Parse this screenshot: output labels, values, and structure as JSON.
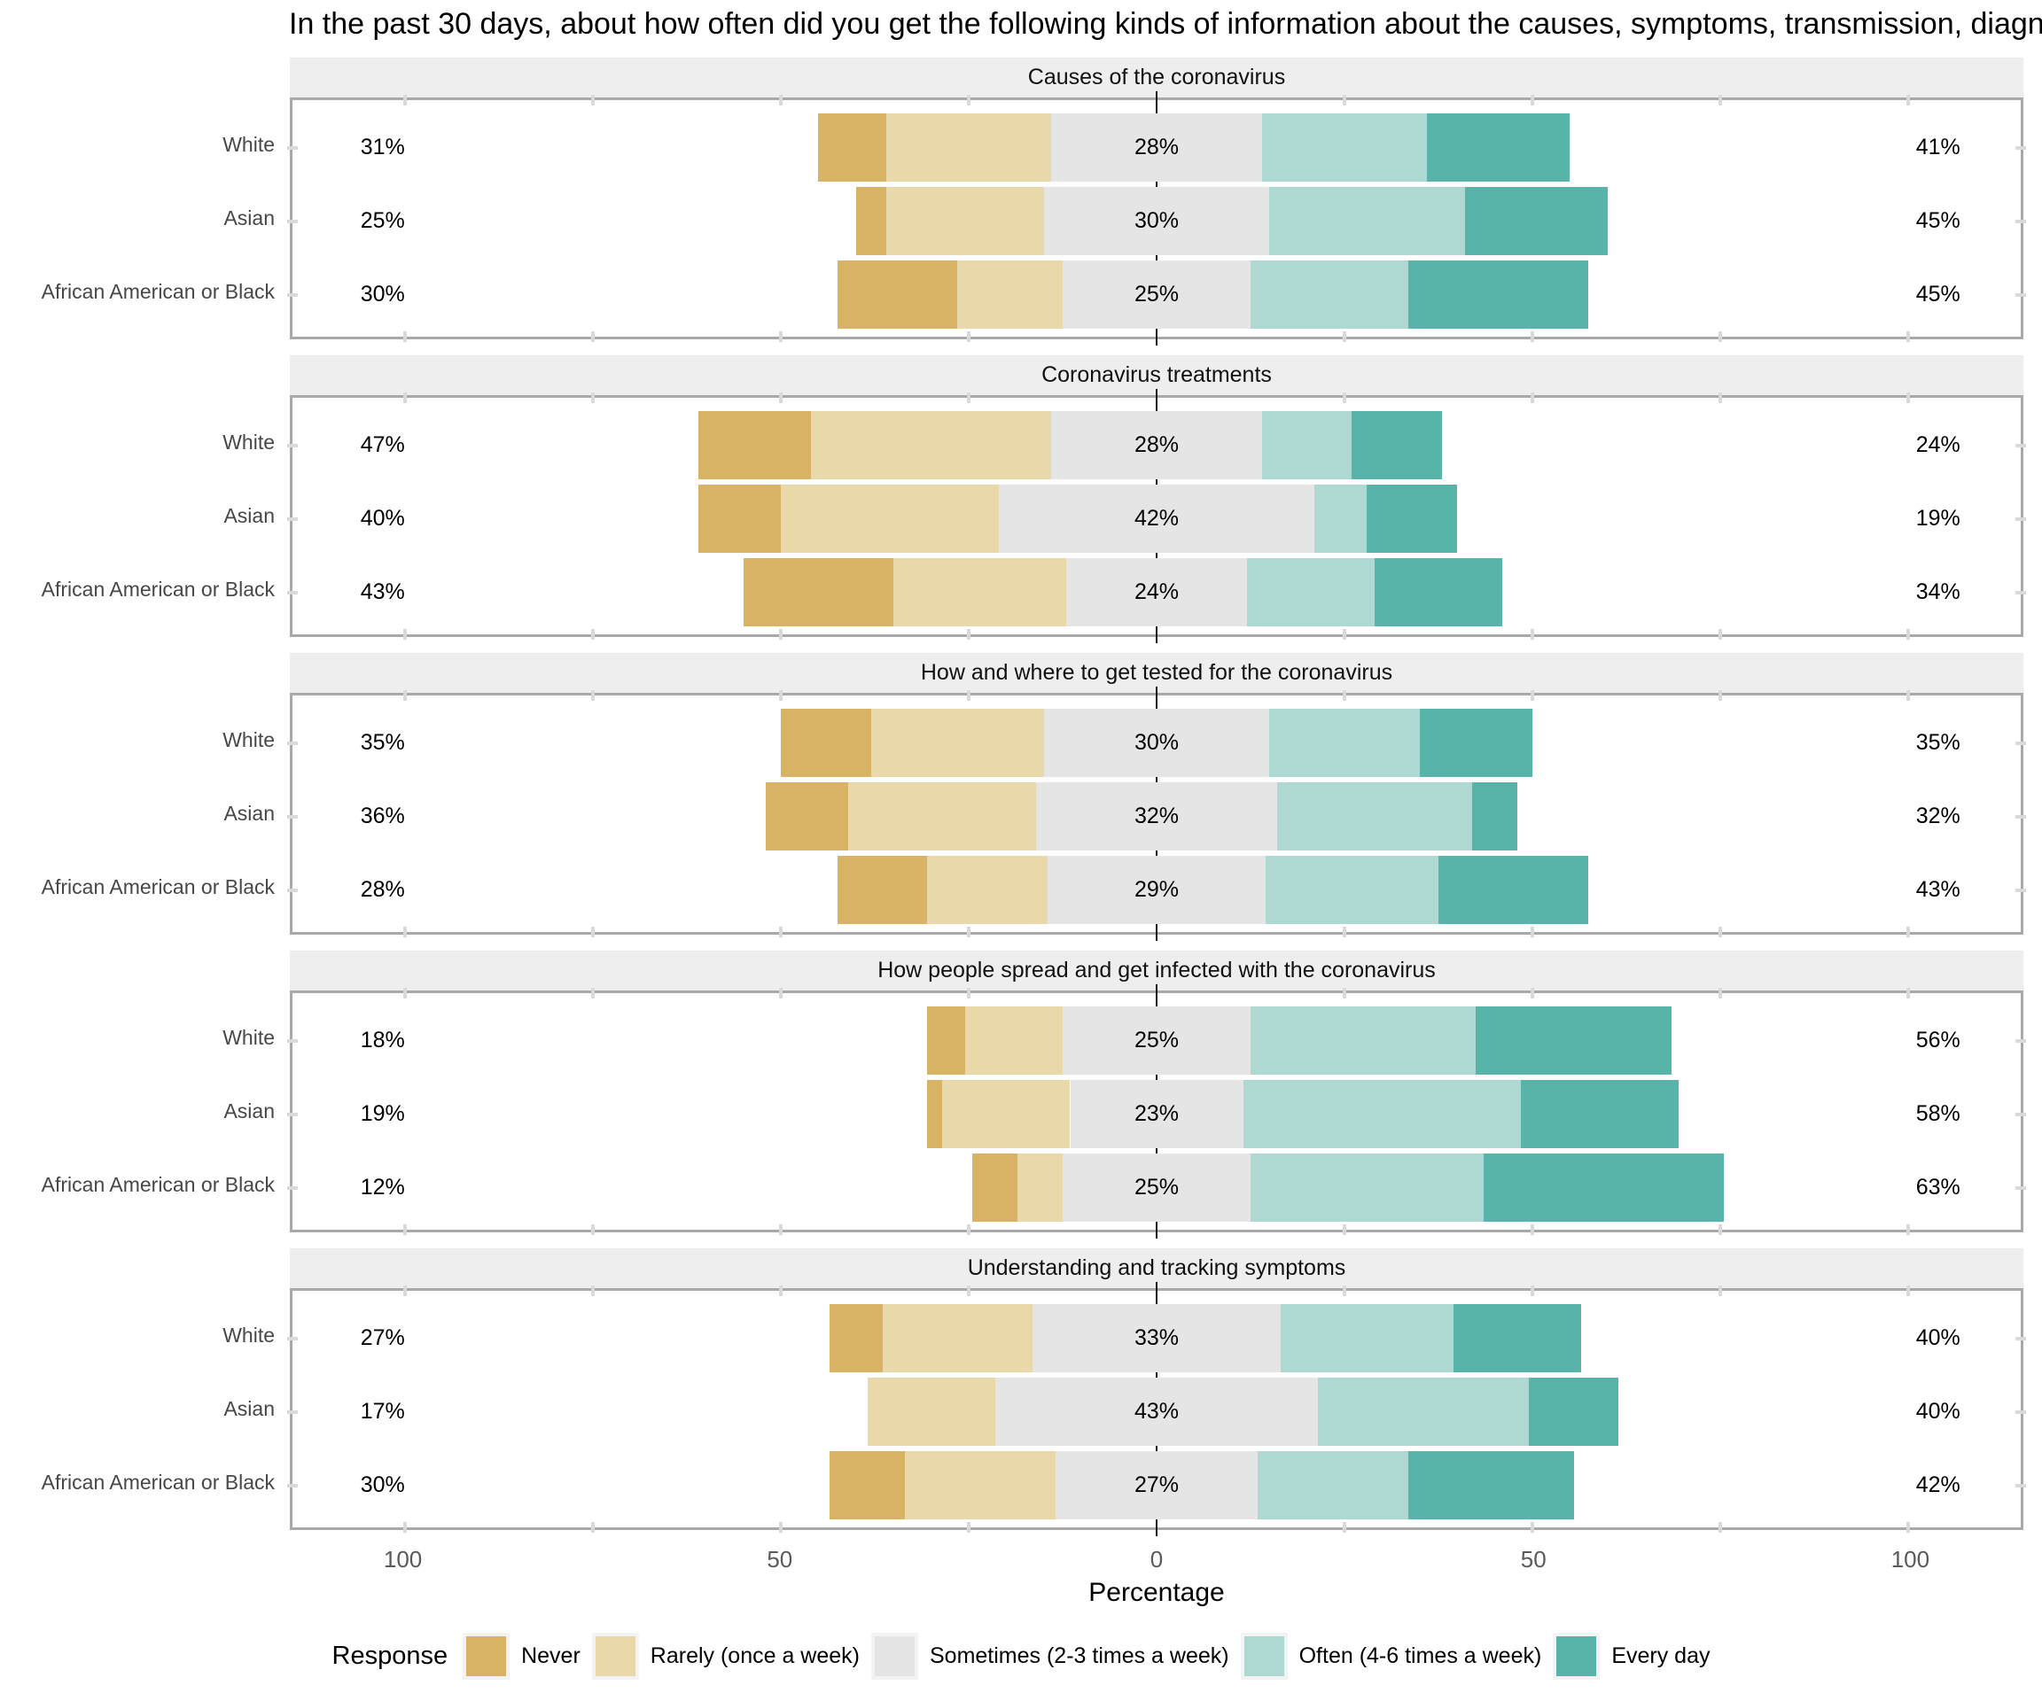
{
  "title": "In the past 30 days, about how often did you get the following kinds of information about the causes, symptoms, transmission, diagn",
  "x_axis": {
    "label": "Percentage",
    "tick_values": [
      -100,
      -50,
      0,
      50,
      100
    ],
    "tick_labels": [
      "100",
      "50",
      "0",
      "50",
      "100"
    ],
    "minor_tick_values": [
      -100,
      -75,
      -50,
      -25,
      25,
      50,
      75,
      100
    ],
    "range": [
      -115,
      115
    ]
  },
  "legend": {
    "title": "Response",
    "items": [
      {
        "key": "never",
        "label": "Never"
      },
      {
        "key": "rarely",
        "label": "Rarely (once a week)"
      },
      {
        "key": "sometimes",
        "label": "Sometimes (2-3 times a week)"
      },
      {
        "key": "often",
        "label": "Often (4-6 times a week)"
      },
      {
        "key": "every_day",
        "label": "Every day"
      }
    ]
  },
  "colors": {
    "never": "#D8B365",
    "rarely": "#E9D8A9",
    "sometimes": "#E5E5E5",
    "often": "#ADD9D2",
    "every_day": "#58B3A8",
    "strip_bg": "#EEEEEE",
    "panel_border": "#A8A8A8",
    "zero_line": "#141414",
    "tick_notch": "#D9D9D9",
    "axis_text": "#5A5A5A",
    "row_label_text": "#474747"
  },
  "chart_data": {
    "type": "bar",
    "variant": "diverging-stacked-likert",
    "orientation": "horizontal",
    "note": "Sometimes segment is centered on 0; left printed total = Never+Rarely, center = Sometimes, right = Often+Every day",
    "response_levels": [
      "Never",
      "Rarely (once a week)",
      "Sometimes (2-3 times a week)",
      "Often (4-6 times a week)",
      "Every day"
    ],
    "groups": [
      "White",
      "Asian",
      "African American or Black"
    ],
    "panels": [
      {
        "title": "Causes of the coronavirus",
        "rows": [
          {
            "group": "White",
            "left": "31%",
            "center": "28%",
            "right": "41%",
            "never": 9,
            "rarely": 22,
            "sometimes": 28,
            "often": 22,
            "every_day": 19
          },
          {
            "group": "Asian",
            "left": "25%",
            "center": "30%",
            "right": "45%",
            "never": 4,
            "rarely": 21,
            "sometimes": 30,
            "often": 26,
            "every_day": 19
          },
          {
            "group": "African American or Black",
            "left": "30%",
            "center": "25%",
            "right": "45%",
            "never": 16,
            "rarely": 14,
            "sometimes": 25,
            "often": 21,
            "every_day": 24
          }
        ]
      },
      {
        "title": "Coronavirus treatments",
        "rows": [
          {
            "group": "White",
            "left": "47%",
            "center": "28%",
            "right": "24%",
            "never": 15,
            "rarely": 32,
            "sometimes": 28,
            "often": 12,
            "every_day": 12
          },
          {
            "group": "Asian",
            "left": "40%",
            "center": "42%",
            "right": "19%",
            "never": 11,
            "rarely": 29,
            "sometimes": 42,
            "often": 7,
            "every_day": 12
          },
          {
            "group": "African American or Black",
            "left": "43%",
            "center": "24%",
            "right": "34%",
            "never": 20,
            "rarely": 23,
            "sometimes": 24,
            "often": 17,
            "every_day": 17
          }
        ]
      },
      {
        "title": "How and where to get tested for the coronavirus",
        "rows": [
          {
            "group": "White",
            "left": "35%",
            "center": "30%",
            "right": "35%",
            "never": 12,
            "rarely": 23,
            "sometimes": 30,
            "often": 20,
            "every_day": 15
          },
          {
            "group": "Asian",
            "left": "36%",
            "center": "32%",
            "right": "32%",
            "never": 11,
            "rarely": 25,
            "sometimes": 32,
            "often": 26,
            "every_day": 6
          },
          {
            "group": "African American or Black",
            "left": "28%",
            "center": "29%",
            "right": "43%",
            "never": 12,
            "rarely": 16,
            "sometimes": 29,
            "often": 23,
            "every_day": 20
          }
        ]
      },
      {
        "title": "How people spread and get infected with the coronavirus",
        "rows": [
          {
            "group": "White",
            "left": "18%",
            "center": "25%",
            "right": "56%",
            "never": 5,
            "rarely": 13,
            "sometimes": 25,
            "often": 30,
            "every_day": 26
          },
          {
            "group": "Asian",
            "left": "19%",
            "center": "23%",
            "right": "58%",
            "never": 2,
            "rarely": 17,
            "sometimes": 23,
            "often": 37,
            "every_day": 21
          },
          {
            "group": "African American or Black",
            "left": "12%",
            "center": "25%",
            "right": "63%",
            "never": 6,
            "rarely": 6,
            "sometimes": 25,
            "often": 31,
            "every_day": 32
          }
        ]
      },
      {
        "title": "Understanding and tracking symptoms",
        "rows": [
          {
            "group": "White",
            "left": "27%",
            "center": "33%",
            "right": "40%",
            "never": 7,
            "rarely": 20,
            "sometimes": 33,
            "often": 23,
            "every_day": 17
          },
          {
            "group": "Asian",
            "left": "17%",
            "center": "43%",
            "right": "40%",
            "never": 0,
            "rarely": 17,
            "sometimes": 43,
            "often": 28,
            "every_day": 12
          },
          {
            "group": "African American or Black",
            "left": "30%",
            "center": "27%",
            "right": "42%",
            "never": 10,
            "rarely": 20,
            "sometimes": 27,
            "often": 20,
            "every_day": 22
          }
        ]
      }
    ]
  }
}
